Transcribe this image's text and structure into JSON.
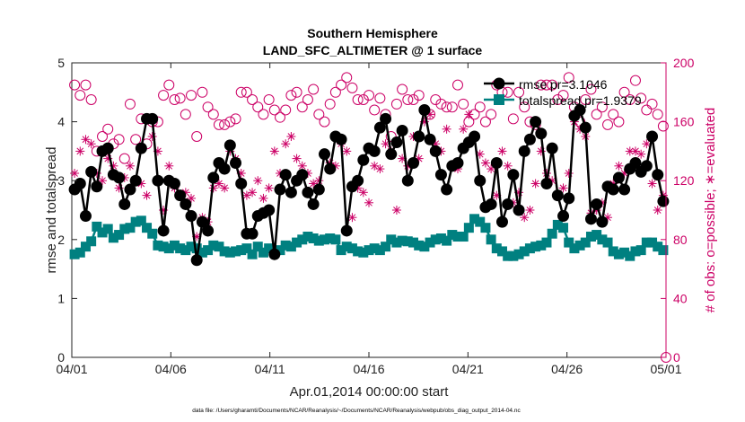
{
  "chart_data": {
    "type": "line",
    "title": "Southern Hemisphere",
    "subtitle": "LAND_SFC_ALTIMETER @ 1 surface",
    "xlabel": "Apr.01,2014 00:00:00 start",
    "ylabel": "rmse and totalspread",
    "y2label": "# of obs: o=possible; ∗=evaluated",
    "footnote": "data file: /Users/gharamti/Documents/NCAR/Reanalysis/~/Documents/NCAR/Reanalysis/webpub/obs_diag_output_2014-04.nc",
    "xlim": [
      0,
      30
    ],
    "ylim": [
      0,
      5
    ],
    "y2lim": [
      0,
      200
    ],
    "x_ticks": [
      0,
      5,
      10,
      15,
      20,
      25,
      30
    ],
    "x_tick_labels": [
      "04/01",
      "04/06",
      "04/11",
      "04/16",
      "04/21",
      "04/26",
      "05/01"
    ],
    "y_tick_labels": [
      "0",
      "1",
      "2",
      "3",
      "4",
      "5"
    ],
    "y2_tick_labels": [
      "0",
      "40",
      "80",
      "120",
      "160",
      "200"
    ],
    "legend_position": "top-right",
    "series": [
      {
        "name": "rmse pr=3.1046",
        "axis": "left",
        "color": "#000000",
        "marker": "filled-circle",
        "values": [
          2.85,
          2.95,
          2.4,
          3.15,
          2.9,
          3.5,
          3.55,
          3.1,
          3.05,
          2.6,
          2.85,
          3.0,
          3.55,
          4.05,
          4.05,
          3.0,
          2.15,
          3.0,
          2.95,
          2.75,
          2.6,
          2.4,
          1.65,
          2.3,
          2.15,
          3.05,
          3.3,
          3.2,
          3.6,
          3.3,
          2.95,
          2.1,
          2.1,
          2.4,
          2.45,
          2.5,
          1.75,
          2.85,
          3.1,
          2.8,
          3.0,
          3.1,
          2.8,
          2.6,
          2.85,
          3.45,
          3.2,
          3.75,
          3.7,
          2.15,
          2.9,
          3.0,
          3.35,
          3.55,
          3.5,
          3.9,
          4.05,
          3.45,
          3.65,
          3.85,
          3.0,
          3.3,
          3.75,
          4.2,
          3.7,
          3.5,
          3.1,
          2.85,
          3.25,
          3.3,
          3.55,
          3.65,
          3.75,
          3.0,
          2.55,
          2.6,
          3.3,
          2.3,
          2.6,
          3.1,
          2.5,
          3.5,
          3.7,
          4.0,
          3.8,
          2.95,
          3.55,
          2.75,
          2.4,
          2.7,
          4.1,
          4.2,
          3.9,
          2.35,
          2.6,
          2.3,
          2.9,
          2.85,
          3.05,
          2.85,
          3.2,
          3.3,
          3.15,
          3.25,
          3.75,
          3.1,
          2.65
        ]
      },
      {
        "name": "totalspread pr=1.9379",
        "axis": "left",
        "color": "#008080",
        "marker": "filled-square",
        "values": [
          1.75,
          1.78,
          1.88,
          1.97,
          2.22,
          2.12,
          2.18,
          2.03,
          2.08,
          2.18,
          2.2,
          2.3,
          2.32,
          2.2,
          2.1,
          1.9,
          1.88,
          1.85,
          1.9,
          1.85,
          1.82,
          1.88,
          1.85,
          1.78,
          1.82,
          1.9,
          1.88,
          1.8,
          1.78,
          1.8,
          1.82,
          1.85,
          1.75,
          1.88,
          1.78,
          1.85,
          1.78,
          1.82,
          1.9,
          1.88,
          1.95,
          2.0,
          2.05,
          2.02,
          1.98,
          2.0,
          2.02,
          2.0,
          1.82,
          1.88,
          1.85,
          1.8,
          1.78,
          1.82,
          1.85,
          1.82,
          1.88,
          2.0,
          1.95,
          1.98,
          1.97,
          1.95,
          1.9,
          1.88,
          1.95,
          2.0,
          2.02,
          1.98,
          2.08,
          2.05,
          2.05,
          2.2,
          2.35,
          2.3,
          2.2,
          2.0,
          1.85,
          1.8,
          1.72,
          1.72,
          1.75,
          1.8,
          1.85,
          1.88,
          1.9,
          1.95,
          2.1,
          2.25,
          2.2,
          1.95,
          1.85,
          1.9,
          1.95,
          2.05,
          2.08,
          2.0,
          1.95,
          1.8,
          1.75,
          1.78,
          1.72,
          1.8,
          1.82,
          1.95,
          1.95,
          1.88,
          1.82
        ]
      },
      {
        "name": "possible",
        "axis": "right",
        "color": "#cc0066",
        "marker": "open-circle",
        "values": [
          185,
          178,
          185,
          175,
          140,
          150,
          155,
          145,
          148,
          135,
          172,
          148,
          162,
          145,
          160,
          160,
          178,
          185,
          175,
          176,
          165,
          178,
          150,
          180,
          170,
          165,
          158,
          158,
          160,
          162,
          180,
          180,
          175,
          170,
          165,
          175,
          168,
          163,
          168,
          178,
          180,
          170,
          175,
          182,
          165,
          160,
          172,
          180,
          185,
          190,
          183,
          175,
          175,
          178,
          168,
          176,
          165,
          150,
          172,
          182,
          175,
          175,
          178,
          168,
          165,
          175,
          172,
          170,
          170,
          185,
          172,
          160,
          165,
          170,
          160,
          165,
          185,
          180,
          180,
          162,
          180,
          170,
          160,
          158,
          185,
          185,
          185,
          175,
          178,
          190,
          170,
          160,
          175,
          182,
          165,
          170,
          158,
          165,
          160,
          180,
          175,
          188,
          176,
          168,
          172,
          165,
          157
        ]
      },
      {
        "name": "evaluated",
        "axis": "right",
        "color": "#cc0066",
        "marker": "asterisk",
        "values": [
          125,
          140,
          148,
          145,
          125,
          120,
          135,
          130,
          115,
          122,
          130,
          120,
          118,
          110,
          150,
          140,
          100,
          130,
          115,
          110,
          112,
          108,
          82,
          95,
          92,
          115,
          118,
          115,
          140,
          135,
          125,
          110,
          112,
          120,
          108,
          115,
          140,
          125,
          145,
          150,
          135,
          130,
          125,
          118,
          120,
          138,
          132,
          130,
          145,
          140,
          95,
          115,
          112,
          105,
          130,
          128,
          145,
          140,
          100,
          135,
          130,
          150,
          135,
          160,
          165,
          145,
          140,
          155,
          130,
          128,
          155,
          165,
          150,
          138,
          132,
          128,
          110,
          140,
          130,
          105,
          112,
          95,
          100,
          118,
          140,
          125,
          120,
          110,
          115,
          125,
          160,
          155,
          150,
          98,
          100,
          105,
          95,
          118,
          130,
          125,
          140,
          140,
          138,
          145,
          118,
          100,
          110
        ]
      }
    ]
  }
}
